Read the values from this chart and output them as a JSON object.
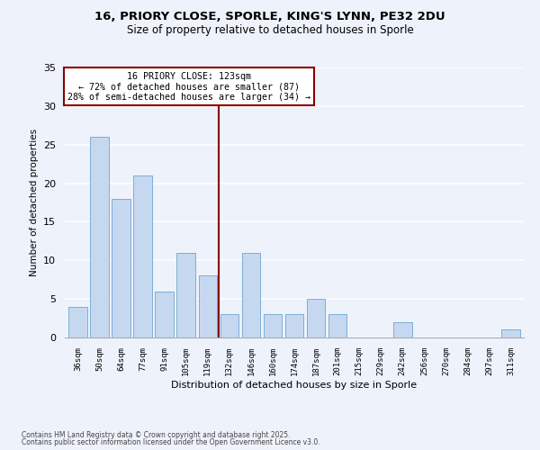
{
  "title_line1": "16, PRIORY CLOSE, SPORLE, KING'S LYNN, PE32 2DU",
  "title_line2": "Size of property relative to detached houses in Sporle",
  "xlabel": "Distribution of detached houses by size in Sporle",
  "ylabel": "Number of detached properties",
  "bar_labels": [
    "36sqm",
    "50sqm",
    "64sqm",
    "77sqm",
    "91sqm",
    "105sqm",
    "119sqm",
    "132sqm",
    "146sqm",
    "160sqm",
    "174sqm",
    "187sqm",
    "201sqm",
    "215sqm",
    "229sqm",
    "242sqm",
    "256sqm",
    "270sqm",
    "284sqm",
    "297sqm",
    "311sqm"
  ],
  "bar_values": [
    4,
    26,
    18,
    21,
    6,
    11,
    8,
    3,
    11,
    3,
    3,
    5,
    3,
    0,
    0,
    2,
    0,
    0,
    0,
    0,
    1
  ],
  "bar_color": "#c5d8f0",
  "bar_edgecolor": "#7bafd4",
  "property_label": "16 PRIORY CLOSE: 123sqm",
  "annotation_line1": "← 72% of detached houses are smaller (87)",
  "annotation_line2": "28% of semi-detached houses are larger (34) →",
  "vline_x_index": 6.5,
  "vline_color": "#8b0000",
  "box_facecolor": "#ffffff",
  "box_edgecolor": "#8b0000",
  "ylim": [
    0,
    35
  ],
  "yticks": [
    0,
    5,
    10,
    15,
    20,
    25,
    30,
    35
  ],
  "footnote1": "Contains HM Land Registry data © Crown copyright and database right 2025.",
  "footnote2": "Contains public sector information licensed under the Open Government Licence v3.0.",
  "background_color": "#eef2fb",
  "grid_color": "#ffffff"
}
